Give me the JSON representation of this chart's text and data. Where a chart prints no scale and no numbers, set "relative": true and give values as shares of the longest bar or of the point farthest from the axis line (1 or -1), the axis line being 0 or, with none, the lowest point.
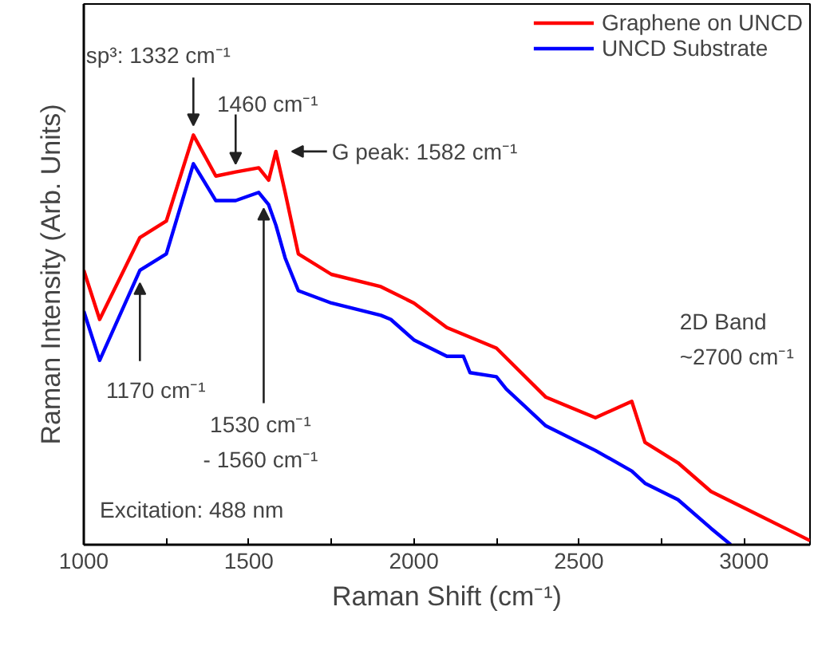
{
  "chart_data": {
    "type": "line",
    "relative": true,
    "xlabel": "Raman Shift (cm⁻¹)",
    "ylabel": "Raman Intensity (Arb. Units)",
    "xlim": [
      1000,
      3200
    ],
    "xticks": [
      1000,
      {
        "value": 1250,
        "label": null
      },
      1500,
      {
        "value": 1750,
        "label": null
      },
      2000,
      {
        "value": 2250,
        "label": null
      },
      2500,
      {
        "value": 2750,
        "label": null
      },
      3000
    ],
    "grid": false,
    "legend": "top right",
    "series": [
      {
        "name": "Graphene on UNCD",
        "color": "#ff0000",
        "x": [
          1000,
          1048,
          1170,
          1250,
          1332,
          1400,
          1460,
          1530,
          1560,
          1582,
          1610,
          1650,
          1750,
          1900,
          2000,
          2100,
          2250,
          2400,
          2550,
          2660,
          2700,
          2800,
          2900,
          3000,
          3200
        ],
        "values": [
          0.67,
          0.55,
          0.75,
          0.79,
          1.0,
          0.9,
          0.91,
          0.92,
          0.89,
          0.96,
          0.86,
          0.71,
          0.66,
          0.63,
          0.59,
          0.53,
          0.48,
          0.36,
          0.31,
          0.35,
          0.25,
          0.2,
          0.13,
          0.09,
          0.01
        ]
      },
      {
        "name": "UNCD Substrate",
        "color": "#0000ff",
        "x": [
          1000,
          1048,
          1170,
          1250,
          1332,
          1400,
          1460,
          1530,
          1560,
          1582,
          1610,
          1650,
          1750,
          1900,
          1930,
          2000,
          2100,
          2150,
          2170,
          2250,
          2280,
          2400,
          2550,
          2660,
          2700,
          2800,
          2900,
          2960
        ],
        "values": [
          0.57,
          0.45,
          0.67,
          0.71,
          0.93,
          0.84,
          0.84,
          0.86,
          0.83,
          0.78,
          0.7,
          0.62,
          0.59,
          0.56,
          0.55,
          0.5,
          0.46,
          0.46,
          0.42,
          0.41,
          0.38,
          0.29,
          0.23,
          0.18,
          0.15,
          0.11,
          0.04,
          0.0
        ]
      }
    ],
    "line_style": "solid",
    "marker": "none",
    "annotations": [
      {
        "text": "sp³: 1332 cm⁻¹",
        "x": 1332,
        "y": 1.0
      },
      {
        "text": "1460 cm⁻¹",
        "x": 1460,
        "y": 0.91
      },
      {
        "text": "G peak: 1582 cm⁻¹",
        "x": 1582,
        "y": 0.96
      },
      {
        "text": "1170 cm⁻¹",
        "x": 1170,
        "y": 0.67
      },
      {
        "text": "1530 cm⁻¹\n- 1560 cm⁻¹",
        "x": 1545,
        "y": 0.84
      },
      {
        "text": "2D Band\n~2700 cm⁻¹",
        "x": 2660,
        "y": 0.35
      },
      "Excitation: 488 nm"
    ]
  }
}
